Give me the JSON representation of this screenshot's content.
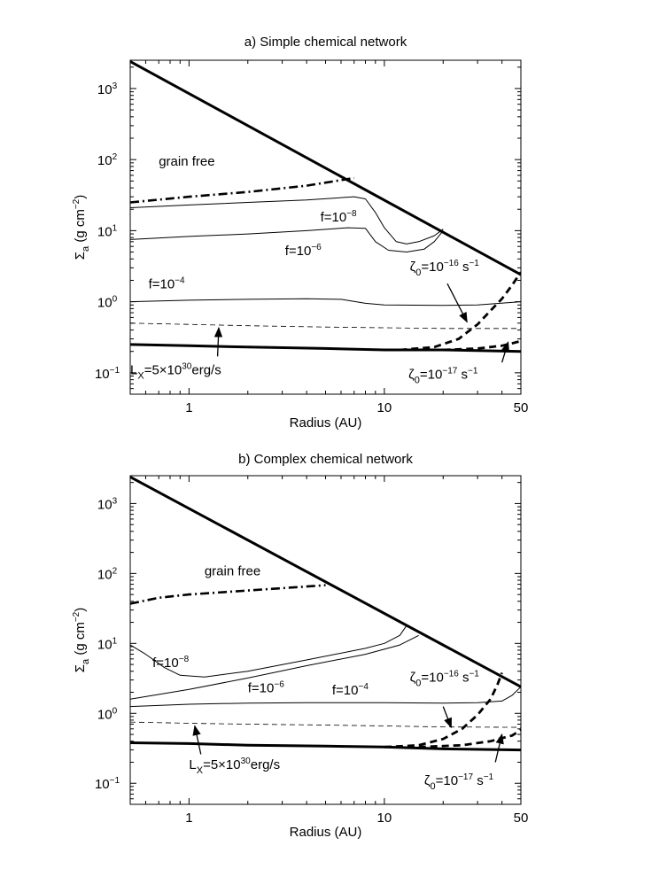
{
  "chart_data": [
    {
      "type": "line",
      "title": "a) Simple chemical network",
      "xlabel": "Radius (AU)",
      "ylabel_main": "Σ",
      "ylabel_sub": "a",
      "ylabel_rest": "(g cm",
      "ylabel_sup": "−2",
      "ylabel_close": ")",
      "xscale": "log",
      "yscale": "log",
      "xlim": [
        0.5,
        50
      ],
      "ylim": [
        0.05,
        2500
      ],
      "x_ticks": [
        {
          "value": 1,
          "label": "1"
        },
        {
          "value": 10,
          "label": "10"
        },
        {
          "value": 50,
          "label": "50"
        }
      ],
      "y_ticks": [
        {
          "value": 0.1,
          "base": "10",
          "exp": "−1"
        },
        {
          "value": 1,
          "base": "10",
          "exp": "0"
        },
        {
          "value": 10,
          "base": "10",
          "exp": "1"
        },
        {
          "value": 100,
          "base": "10",
          "exp": "2"
        },
        {
          "value": 1000,
          "base": "10",
          "exp": "3"
        }
      ],
      "series": [
        {
          "style": "thick",
          "points": [
            [
              0.5,
              2400
            ],
            [
              50,
              2.4
            ]
          ]
        },
        {
          "style": "dashdot",
          "points": [
            [
              0.5,
              25
            ],
            [
              1,
              30
            ],
            [
              2,
              35
            ],
            [
              4,
              43
            ],
            [
              7,
              55
            ]
          ]
        },
        {
          "style": "thin",
          "points": [
            [
              0.5,
              21
            ],
            [
              1,
              23
            ],
            [
              2,
              25
            ],
            [
              4,
              27
            ],
            [
              7,
              30
            ],
            [
              8,
              28
            ],
            [
              9,
              18
            ],
            [
              10,
              11
            ],
            [
              11.5,
              7
            ],
            [
              13,
              6.5
            ],
            [
              15,
              7
            ],
            [
              18,
              8.5
            ],
            [
              20,
              10.5
            ]
          ]
        },
        {
          "style": "thin",
          "points": [
            [
              0.5,
              7.5
            ],
            [
              1,
              8.3
            ],
            [
              2,
              9
            ],
            [
              4,
              10
            ],
            [
              6.5,
              11
            ],
            [
              8,
              10.8
            ],
            [
              9,
              7
            ],
            [
              10.5,
              5.3
            ],
            [
              13,
              5
            ],
            [
              16,
              5.5
            ],
            [
              18,
              7
            ],
            [
              20,
              10
            ]
          ]
        },
        {
          "style": "thin",
          "points": [
            [
              0.5,
              1.0
            ],
            [
              1,
              1.05
            ],
            [
              2,
              1.08
            ],
            [
              4,
              1.1
            ],
            [
              6,
              1.08
            ],
            [
              8,
              0.95
            ],
            [
              10,
              0.9
            ],
            [
              20,
              0.89
            ],
            [
              30,
              0.9
            ],
            [
              50,
              1.0
            ]
          ]
        },
        {
          "style": "dashed-thin",
          "points": [
            [
              0.5,
              0.5
            ],
            [
              1,
              0.48
            ],
            [
              2,
              0.46
            ],
            [
              5,
              0.44
            ],
            [
              10,
              0.43
            ],
            [
              20,
              0.42
            ],
            [
              50,
              0.42
            ]
          ]
        },
        {
          "style": "thick",
          "points": [
            [
              0.5,
              0.25
            ],
            [
              1,
              0.24
            ],
            [
              2,
              0.23
            ],
            [
              5,
              0.22
            ],
            [
              10,
              0.21
            ],
            [
              20,
              0.21
            ],
            [
              50,
              0.2
            ]
          ]
        },
        {
          "style": "dashed-thick",
          "points": [
            [
              12,
              0.21
            ],
            [
              18,
              0.23
            ],
            [
              24,
              0.3
            ],
            [
              30,
              0.48
            ],
            [
              35,
              0.75
            ],
            [
              40,
              1.1
            ],
            [
              45,
              1.7
            ],
            [
              50,
              2.6
            ]
          ]
        },
        {
          "style": "dashed-thick",
          "points": [
            [
              20,
              0.21
            ],
            [
              30,
              0.22
            ],
            [
              40,
              0.24
            ],
            [
              45,
              0.26
            ],
            [
              50,
              0.28
            ]
          ]
        }
      ],
      "annotations": [
        {
          "parts": [
            {
              "t": "grain free"
            }
          ],
          "x": 0.7,
          "y": 82
        },
        {
          "parts": [
            {
              "t": "f=10"
            },
            {
              "t": "−8",
              "sup": true
            }
          ],
          "x": 4.7,
          "y": 13.5
        },
        {
          "parts": [
            {
              "t": "f=10"
            },
            {
              "t": "−6",
              "sup": true
            }
          ],
          "x": 3.1,
          "y": 4.5
        },
        {
          "parts": [
            {
              "t": "f=10"
            },
            {
              "t": "−4",
              "sup": true
            }
          ],
          "x": 0.62,
          "y": 1.55
        },
        {
          "parts": [
            {
              "t": "ζ"
            },
            {
              "t": "0",
              "sub": true
            },
            {
              "t": "=10"
            },
            {
              "t": "−16",
              "sup": true
            },
            {
              "t": " s"
            },
            {
              "t": "−1",
              "sup": true
            }
          ],
          "x": 13.5,
          "y": 2.7
        },
        {
          "parts": [
            {
              "t": "L"
            },
            {
              "t": "X",
              "sub": true
            },
            {
              "t": "=5×10"
            },
            {
              "t": "30",
              "sup": true
            },
            {
              "t": "erg/s"
            }
          ],
          "x": 0.5,
          "y": 0.095
        },
        {
          "parts": [
            {
              "t": "ζ"
            },
            {
              "t": "0",
              "sub": true
            },
            {
              "t": "=10"
            },
            {
              "t": "−17",
              "sup": true
            },
            {
              "t": " s"
            },
            {
              "t": "−1",
              "sup": true
            }
          ],
          "x": 13.3,
          "y": 0.083
        }
      ],
      "arrows": [
        {
          "from": [
            21,
            1.8
          ],
          "to": [
            26.5,
            0.52
          ]
        },
        {
          "from": [
            1.4,
            0.17
          ],
          "to": [
            1.42,
            0.43
          ]
        },
        {
          "from": [
            40,
            0.14
          ],
          "to": [
            43,
            0.27
          ]
        }
      ]
    },
    {
      "type": "line",
      "title": "b) Complex chemical network",
      "xlabel": "Radius (AU)",
      "ylabel_main": "Σ",
      "ylabel_sub": "a",
      "ylabel_rest": "(g cm",
      "ylabel_sup": "−2",
      "ylabel_close": ")",
      "xscale": "log",
      "yscale": "log",
      "xlim": [
        0.5,
        50
      ],
      "ylim": [
        0.05,
        2500
      ],
      "x_ticks": [
        {
          "value": 1,
          "label": "1"
        },
        {
          "value": 10,
          "label": "10"
        },
        {
          "value": 50,
          "label": "50"
        }
      ],
      "y_ticks": [
        {
          "value": 0.1,
          "base": "10",
          "exp": "−1"
        },
        {
          "value": 1,
          "base": "10",
          "exp": "0"
        },
        {
          "value": 10,
          "base": "10",
          "exp": "1"
        },
        {
          "value": 100,
          "base": "10",
          "exp": "2"
        },
        {
          "value": 1000,
          "base": "10",
          "exp": "3"
        }
      ],
      "series": [
        {
          "style": "thick",
          "points": [
            [
              0.5,
              2400
            ],
            [
              50,
              2.4
            ]
          ]
        },
        {
          "style": "dashdot",
          "points": [
            [
              0.5,
              37
            ],
            [
              0.7,
              45
            ],
            [
              1,
              50
            ],
            [
              2,
              57
            ],
            [
              4,
              65
            ],
            [
              5,
              68
            ]
          ]
        },
        {
          "style": "thin",
          "points": [
            [
              0.5,
              9.5
            ],
            [
              0.6,
              7
            ],
            [
              0.75,
              4.5
            ],
            [
              0.9,
              3.5
            ],
            [
              1.2,
              3.3
            ],
            [
              2,
              4
            ],
            [
              4,
              5.8
            ],
            [
              8,
              8.5
            ],
            [
              10,
              10
            ],
            [
              12,
              13
            ],
            [
              13,
              18
            ]
          ]
        },
        {
          "style": "thin",
          "points": [
            [
              0.5,
              1.6
            ],
            [
              1,
              2.2
            ],
            [
              2,
              3.2
            ],
            [
              4,
              4.8
            ],
            [
              8,
              7
            ],
            [
              12,
              9.5
            ],
            [
              15,
              13
            ]
          ]
        },
        {
          "style": "thin",
          "points": [
            [
              0.5,
              1.25
            ],
            [
              1,
              1.35
            ],
            [
              2,
              1.4
            ],
            [
              4,
              1.42
            ],
            [
              10,
              1.42
            ],
            [
              20,
              1.4
            ],
            [
              30,
              1.42
            ],
            [
              40,
              1.5
            ],
            [
              45,
              1.8
            ],
            [
              50,
              2.4
            ]
          ]
        },
        {
          "style": "dashed-thin",
          "points": [
            [
              0.5,
              0.75
            ],
            [
              1,
              0.72
            ],
            [
              2,
              0.7
            ],
            [
              5,
              0.68
            ],
            [
              10,
              0.66
            ],
            [
              20,
              0.64
            ],
            [
              50,
              0.63
            ]
          ]
        },
        {
          "style": "thick",
          "points": [
            [
              0.5,
              0.38
            ],
            [
              1,
              0.37
            ],
            [
              2,
              0.35
            ],
            [
              5,
              0.34
            ],
            [
              10,
              0.33
            ],
            [
              20,
              0.31
            ],
            [
              50,
              0.3
            ]
          ]
        },
        {
          "style": "dashed-thick",
          "points": [
            [
              10,
              0.33
            ],
            [
              15,
              0.35
            ],
            [
              20,
              0.43
            ],
            [
              25,
              0.6
            ],
            [
              30,
              0.95
            ],
            [
              35,
              1.6
            ],
            [
              38,
              2.6
            ],
            [
              40,
              3.8
            ]
          ]
        },
        {
          "style": "dashed-thick",
          "points": [
            [
              15,
              0.33
            ],
            [
              25,
              0.35
            ],
            [
              35,
              0.4
            ],
            [
              45,
              0.48
            ],
            [
              50,
              0.58
            ]
          ]
        }
      ],
      "annotations": [
        {
          "parts": [
            {
              "t": "grain free"
            }
          ],
          "x": 1.2,
          "y": 94
        },
        {
          "parts": [
            {
              "t": "f=10"
            },
            {
              "t": "−8",
              "sup": true
            }
          ],
          "x": 0.65,
          "y": 4.6
        },
        {
          "parts": [
            {
              "t": "f=10"
            },
            {
              "t": "−6",
              "sup": true
            }
          ],
          "x": 2.0,
          "y": 2.0
        },
        {
          "parts": [
            {
              "t": "f=10"
            },
            {
              "t": "−4",
              "sup": true
            }
          ],
          "x": 5.4,
          "y": 1.85
        },
        {
          "parts": [
            {
              "t": "ζ"
            },
            {
              "t": "0",
              "sub": true
            },
            {
              "t": "=10"
            },
            {
              "t": "−16",
              "sup": true
            },
            {
              "t": " s"
            },
            {
              "t": "−1",
              "sup": true
            }
          ],
          "x": 13.5,
          "y": 2.85
        },
        {
          "parts": [
            {
              "t": "L"
            },
            {
              "t": "X",
              "sub": true
            },
            {
              "t": "=5×10"
            },
            {
              "t": "30",
              "sup": true
            },
            {
              "t": "erg/s"
            }
          ],
          "x": 1.0,
          "y": 0.16
        },
        {
          "parts": [
            {
              "t": "ζ"
            },
            {
              "t": "0",
              "sub": true
            },
            {
              "t": "=10"
            },
            {
              "t": "−17",
              "sup": true
            },
            {
              "t": " s"
            },
            {
              "t": "−1",
              "sup": true
            }
          ],
          "x": 16,
          "y": 0.095
        }
      ],
      "arrows": [
        {
          "from": [
            20,
            1.25
          ],
          "to": [
            22,
            0.63
          ]
        },
        {
          "from": [
            1.15,
            0.26
          ],
          "to": [
            1.07,
            0.66
          ]
        },
        {
          "from": [
            37,
            0.2
          ],
          "to": [
            40,
            0.5
          ]
        }
      ]
    }
  ]
}
